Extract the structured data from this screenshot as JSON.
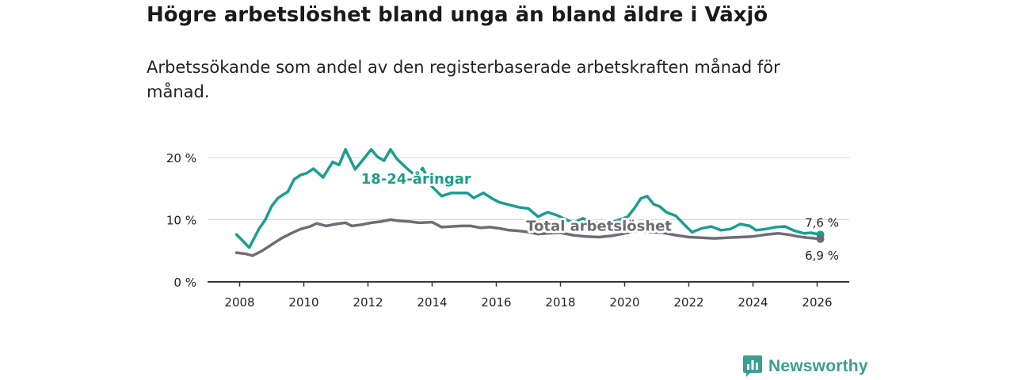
{
  "header": {
    "title": "Högre arbetslöshet bland unga än bland äldre i Växjö",
    "subtitle": "Arbetssökande som andel av den registerbaserade arbetskraften månad för månad."
  },
  "brand": {
    "name": "Newsworthy",
    "color": "#3a9e92"
  },
  "chart_data": {
    "type": "line",
    "title": "Högre arbetslöshet bland unga än bland äldre i Växjö",
    "subtitle": "Arbetssökande som andel av den registerbaserade arbetskraften månad för månad.",
    "xlabel": "",
    "ylabel": "",
    "xlim": [
      2007,
      2027
    ],
    "ylim": [
      0,
      25
    ],
    "x_ticks": [
      2008,
      2010,
      2012,
      2014,
      2016,
      2018,
      2020,
      2022,
      2024,
      2026
    ],
    "x_tick_labels": [
      "2008",
      "2010",
      "2012",
      "2014",
      "2016",
      "2018",
      "2020",
      "2022",
      "2024",
      "2026"
    ],
    "y_ticks": [
      0,
      10,
      20
    ],
    "y_tick_labels": [
      "0 %",
      "10 %",
      "20 %"
    ],
    "grid": true,
    "series": [
      {
        "name": "18-24-åringar",
        "color": "#1a9e8f",
        "end_label": "7,6 %",
        "points": [
          [
            2007.9,
            7.6
          ],
          [
            2008.1,
            6.6
          ],
          [
            2008.3,
            5.5
          ],
          [
            2008.6,
            8.5
          ],
          [
            2008.8,
            10.0
          ],
          [
            2009.0,
            12.2
          ],
          [
            2009.2,
            13.5
          ],
          [
            2009.5,
            14.5
          ],
          [
            2009.7,
            16.5
          ],
          [
            2009.9,
            17.2
          ],
          [
            2010.1,
            17.5
          ],
          [
            2010.3,
            18.2
          ],
          [
            2010.6,
            16.8
          ],
          [
            2010.9,
            19.3
          ],
          [
            2011.1,
            18.8
          ],
          [
            2011.3,
            21.3
          ],
          [
            2011.6,
            18.1
          ],
          [
            2011.9,
            20.0
          ],
          [
            2012.1,
            21.3
          ],
          [
            2012.3,
            20.1
          ],
          [
            2012.5,
            19.5
          ],
          [
            2012.7,
            21.3
          ],
          [
            2012.9,
            19.8
          ],
          [
            2013.2,
            18.3
          ],
          [
            2013.5,
            17.0
          ],
          [
            2013.7,
            18.3
          ],
          [
            2014.0,
            15.3
          ],
          [
            2014.3,
            13.8
          ],
          [
            2014.6,
            14.3
          ],
          [
            2014.9,
            14.3
          ],
          [
            2015.1,
            14.3
          ],
          [
            2015.3,
            13.5
          ],
          [
            2015.6,
            14.3
          ],
          [
            2015.9,
            13.3
          ],
          [
            2016.1,
            12.8
          ],
          [
            2016.4,
            12.4
          ],
          [
            2016.7,
            12.0
          ],
          [
            2017.0,
            11.8
          ],
          [
            2017.3,
            10.5
          ],
          [
            2017.6,
            11.2
          ],
          [
            2017.9,
            10.7
          ],
          [
            2018.1,
            10.2
          ],
          [
            2018.4,
            9.5
          ],
          [
            2018.7,
            10.2
          ],
          [
            2019.0,
            9.6
          ],
          [
            2019.3,
            9.4
          ],
          [
            2019.6,
            9.6
          ],
          [
            2019.9,
            10.1
          ],
          [
            2020.1,
            10.5
          ],
          [
            2020.3,
            11.8
          ],
          [
            2020.5,
            13.4
          ],
          [
            2020.7,
            13.8
          ],
          [
            2020.9,
            12.5
          ],
          [
            2021.1,
            12.1
          ],
          [
            2021.3,
            11.2
          ],
          [
            2021.6,
            10.6
          ],
          [
            2021.9,
            9.0
          ],
          [
            2022.1,
            8.0
          ],
          [
            2022.4,
            8.6
          ],
          [
            2022.7,
            8.9
          ],
          [
            2023.0,
            8.3
          ],
          [
            2023.3,
            8.5
          ],
          [
            2023.6,
            9.3
          ],
          [
            2023.9,
            9.0
          ],
          [
            2024.1,
            8.3
          ],
          [
            2024.4,
            8.5
          ],
          [
            2024.7,
            8.8
          ],
          [
            2025.0,
            8.9
          ],
          [
            2025.3,
            8.2
          ],
          [
            2025.6,
            7.8
          ],
          [
            2025.8,
            7.9
          ],
          [
            2026.1,
            7.6
          ]
        ]
      },
      {
        "name": "Total arbetslöshet",
        "color": "#6e6c75",
        "end_label": "6,9 %",
        "points": [
          [
            2007.9,
            4.7
          ],
          [
            2008.2,
            4.5
          ],
          [
            2008.4,
            4.2
          ],
          [
            2008.7,
            5.0
          ],
          [
            2009.0,
            6.0
          ],
          [
            2009.3,
            7.0
          ],
          [
            2009.6,
            7.8
          ],
          [
            2009.9,
            8.5
          ],
          [
            2010.2,
            8.9
          ],
          [
            2010.4,
            9.4
          ],
          [
            2010.7,
            9.0
          ],
          [
            2011.0,
            9.3
          ],
          [
            2011.3,
            9.5
          ],
          [
            2011.5,
            9.0
          ],
          [
            2011.8,
            9.2
          ],
          [
            2012.1,
            9.5
          ],
          [
            2012.4,
            9.7
          ],
          [
            2012.7,
            10.0
          ],
          [
            2013.0,
            9.8
          ],
          [
            2013.3,
            9.7
          ],
          [
            2013.6,
            9.5
          ],
          [
            2014.0,
            9.6
          ],
          [
            2014.3,
            8.8
          ],
          [
            2014.6,
            8.9
          ],
          [
            2014.9,
            9.0
          ],
          [
            2015.2,
            9.0
          ],
          [
            2015.5,
            8.7
          ],
          [
            2015.8,
            8.8
          ],
          [
            2016.1,
            8.6
          ],
          [
            2016.4,
            8.3
          ],
          [
            2016.7,
            8.2
          ],
          [
            2017.0,
            8.0
          ],
          [
            2017.3,
            7.7
          ],
          [
            2017.6,
            7.8
          ],
          [
            2018.0,
            7.9
          ],
          [
            2018.4,
            7.5
          ],
          [
            2018.8,
            7.3
          ],
          [
            2019.2,
            7.2
          ],
          [
            2019.6,
            7.4
          ],
          [
            2020.0,
            7.8
          ],
          [
            2020.4,
            8.2
          ],
          [
            2020.8,
            8.0
          ],
          [
            2021.2,
            7.9
          ],
          [
            2021.6,
            7.5
          ],
          [
            2022.0,
            7.2
          ],
          [
            2022.4,
            7.1
          ],
          [
            2022.8,
            7.0
          ],
          [
            2023.2,
            7.1
          ],
          [
            2023.6,
            7.2
          ],
          [
            2024.0,
            7.3
          ],
          [
            2024.4,
            7.6
          ],
          [
            2024.8,
            7.8
          ],
          [
            2025.1,
            7.6
          ],
          [
            2025.4,
            7.3
          ],
          [
            2025.7,
            7.1
          ],
          [
            2026.1,
            6.9
          ]
        ]
      }
    ],
    "annotations": [
      {
        "text": "18-24-åringar",
        "series": 0,
        "x": 2013.5,
        "y": 15.8,
        "anchor": "middle"
      },
      {
        "text": "Total arbetslöshet",
        "series": 1,
        "x": 2019.2,
        "y": 8.2,
        "anchor": "middle"
      }
    ]
  }
}
